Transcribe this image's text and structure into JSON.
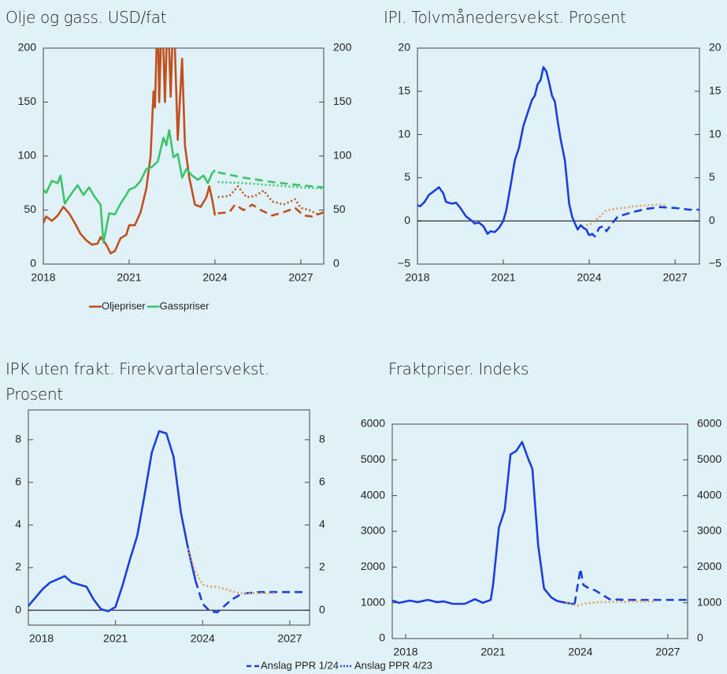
{
  "chart_data": [
    {
      "type": "line",
      "title": "Olje og gass. USD/fat",
      "xlim": [
        2018,
        2027.8
      ],
      "xticks": [
        2018,
        2021,
        2024,
        2027
      ],
      "ylim": [
        0,
        200
      ],
      "yticks": [
        0,
        50,
        100,
        150,
        200
      ],
      "y2lim": [
        0,
        200
      ],
      "y2ticks": [
        0,
        50,
        100,
        150,
        200
      ],
      "legend": "bottom",
      "series": [
        {
          "name": "Oljepriser",
          "color": "#c0501e",
          "style": "solid",
          "x": [
            2018.0,
            2018.1,
            2018.3,
            2018.5,
            2018.7,
            2018.9,
            2019.1,
            2019.3,
            2019.5,
            2019.7,
            2019.9,
            2020.0,
            2020.2,
            2020.35,
            2020.5,
            2020.7,
            2020.9,
            2021.0,
            2021.2,
            2021.4,
            2021.6,
            2021.75,
            2021.85,
            2021.9,
            2022.0,
            2022.05,
            2022.15,
            2022.25,
            2022.35,
            2022.45,
            2022.55,
            2022.7,
            2022.85,
            2022.95,
            2023.1,
            2023.3,
            2023.5,
            2023.7,
            2023.8,
            2023.9,
            2024.0
          ],
          "values": [
            38,
            44,
            40,
            45,
            53,
            47,
            38,
            28,
            22,
            18,
            19,
            25,
            18,
            10,
            12,
            24,
            27,
            36,
            36,
            48,
            70,
            100,
            160,
            145,
            240,
            150,
            240,
            150,
            240,
            155,
            240,
            115,
            190,
            110,
            80,
            55,
            53,
            62,
            72,
            60,
            45
          ]
        },
        {
          "name": "Gasspriser",
          "color": "#3dc46b",
          "style": "solid",
          "x": [
            2018.0,
            2018.1,
            2018.3,
            2018.5,
            2018.6,
            2018.75,
            2019.0,
            2019.2,
            2019.4,
            2019.6,
            2019.8,
            2020.0,
            2020.1,
            2020.3,
            2020.5,
            2020.7,
            2020.9,
            2021.0,
            2021.2,
            2021.4,
            2021.6,
            2021.8,
            2022.0,
            2022.2,
            2022.3,
            2022.4,
            2022.55,
            2022.7,
            2022.85,
            2023.0,
            2023.2,
            2023.4,
            2023.6,
            2023.75,
            2023.9,
            2024.0
          ],
          "values": [
            69,
            66,
            77,
            75,
            82,
            56,
            66,
            73,
            64,
            71,
            62,
            55,
            20,
            47,
            46,
            56,
            64,
            69,
            71,
            77,
            88,
            90,
            95,
            117,
            110,
            124,
            99,
            102,
            80,
            88,
            82,
            78,
            82,
            75,
            84,
            87
          ]
        },
        {
          "color": "#c0501e",
          "style": "dashed",
          "x": [
            2024.1,
            2024.5,
            2024.7,
            2025.0,
            2025.3,
            2025.6,
            2026.0,
            2026.4,
            2026.8,
            2027.1,
            2027.4,
            2027.8
          ],
          "values": [
            47,
            48,
            55,
            50,
            55,
            50,
            45,
            48,
            52,
            45,
            44,
            48
          ]
        },
        {
          "color": "#c0501e",
          "style": "dotted",
          "x": [
            2024.1,
            2024.5,
            2024.8,
            2025.1,
            2025.4,
            2025.7,
            2026.0,
            2026.4,
            2026.8,
            2027.0,
            2027.3,
            2027.6,
            2027.8
          ],
          "values": [
            62,
            63,
            72,
            62,
            63,
            68,
            58,
            55,
            60,
            52,
            50,
            46,
            48
          ]
        },
        {
          "color": "#3dc46b",
          "style": "dashed",
          "x": [
            2024.1,
            2025.0,
            2026.0,
            2027.0,
            2027.8
          ],
          "values": [
            85,
            80,
            76,
            73,
            71
          ]
        },
        {
          "color": "#3dc46b",
          "style": "dotted",
          "x": [
            2024.1,
            2025.0,
            2026.0,
            2027.0,
            2027.8
          ],
          "values": [
            76,
            75,
            73,
            71,
            70
          ]
        }
      ]
    },
    {
      "type": "line",
      "title": "IPI. Tolvmånedersvekst. Prosent",
      "xlim": [
        2018,
        2027.85
      ],
      "xticks": [
        2018,
        2021,
        2024,
        2027
      ],
      "ylim": [
        -5,
        20
      ],
      "yticks": [
        {
          "value": -5,
          "label": "−5"
        },
        0,
        5,
        10,
        15,
        20
      ],
      "y2lim": [
        -5,
        20
      ],
      "y2ticks": [
        {
          "value": -5,
          "label": "−5"
        },
        0,
        5,
        10,
        15,
        20
      ],
      "zero_line": true,
      "series": [
        {
          "color": "#1c3fdc",
          "style": "solid",
          "x": [
            2018.0,
            2018.1,
            2018.25,
            2018.4,
            2018.6,
            2018.75,
            2018.9,
            2019.0,
            2019.2,
            2019.35,
            2019.5,
            2019.7,
            2019.9,
            2020.0,
            2020.15,
            2020.3,
            2020.45,
            2020.55,
            2020.7,
            2020.85,
            2021.0,
            2021.1,
            2021.25,
            2021.4,
            2021.55,
            2021.7,
            2021.85,
            2022.0,
            2022.1,
            2022.2,
            2022.3,
            2022.4,
            2022.5,
            2022.6,
            2022.7,
            2022.8,
            2022.9,
            2023.0,
            2023.15,
            2023.3,
            2023.4,
            2023.5,
            2023.6,
            2023.7,
            2023.8,
            2023.9,
            2024.0
          ],
          "values": [
            1.8,
            1.7,
            2.2,
            3.0,
            3.5,
            3.9,
            3.2,
            2.2,
            2.0,
            2.1,
            1.5,
            0.5,
            0,
            -0.3,
            -0.2,
            -0.6,
            -1.5,
            -1.2,
            -1.3,
            -0.8,
            0,
            1.2,
            4,
            7,
            8.5,
            11,
            12.5,
            14,
            14.5,
            15.8,
            16.3,
            17.8,
            17.3,
            16,
            14.5,
            13.8,
            11.5,
            9.5,
            7,
            2,
            0.5,
            -0.3,
            -1,
            -0.5,
            -0.8,
            -1.0,
            -1.7
          ]
        },
        {
          "color": "#1c3fdc",
          "style": "dashed",
          "x": [
            2024.0,
            2024.1,
            2024.2,
            2024.35,
            2024.5,
            2024.6,
            2024.8,
            2025.0,
            2025.5,
            2026.0,
            2026.5,
            2027.0,
            2027.5,
            2027.85
          ],
          "values": [
            -1.7,
            -1.5,
            -1.8,
            -0.8,
            -0.6,
            -1.2,
            -0.3,
            0.5,
            1.0,
            1.4,
            1.6,
            1.5,
            1.3,
            1.3
          ]
        },
        {
          "color": "#e0a060",
          "style": "dotted",
          "x": [
            2023.9,
            2024.1,
            2024.3,
            2024.6,
            2024.9,
            2025.2,
            2025.6,
            2026.0,
            2026.4,
            2026.7
          ],
          "values": [
            -0.5,
            -0.3,
            0.3,
            1.2,
            1.4,
            1.5,
            1.7,
            1.8,
            1.9,
            1.8
          ]
        }
      ]
    },
    {
      "type": "line",
      "title": "IPK uten frakt. Firekvartalersvekst. Prosent",
      "xlim": [
        2018,
        2027.68
      ],
      "xticks": [
        2018,
        2021,
        2024,
        2027
      ],
      "ylim": [
        -0.7,
        9.4
      ],
      "yticks": [
        0,
        2,
        4,
        6,
        8
      ],
      "y2lim": [
        -0.7,
        9.4
      ],
      "y2ticks": [
        0,
        2,
        4,
        6,
        8
      ],
      "zero_line": true,
      "series": [
        {
          "color": "#1c3fdc",
          "style": "solid",
          "x": [
            2018.0,
            2018.25,
            2018.5,
            2018.75,
            2019.0,
            2019.25,
            2019.5,
            2019.75,
            2020.0,
            2020.25,
            2020.5,
            2020.75,
            2021.0,
            2021.25,
            2021.5,
            2021.75,
            2022.0,
            2022.25,
            2022.5,
            2022.75,
            2023.0,
            2023.25,
            2023.5,
            2023.75
          ],
          "values": [
            0.2,
            0.6,
            1.0,
            1.3,
            1.45,
            1.6,
            1.3,
            1.2,
            1.1,
            0.5,
            0.05,
            -0.05,
            0.15,
            1.2,
            2.4,
            3.5,
            5.4,
            7.4,
            8.4,
            8.3,
            7.2,
            4.6,
            2.9,
            1.4
          ]
        },
        {
          "color": "#1c3fdc",
          "style": "dashed",
          "x": [
            2023.75,
            2024.0,
            2024.25,
            2024.5,
            2024.75,
            2025.0,
            2025.25,
            2025.5,
            2026.0,
            2026.5,
            2027.0,
            2027.6
          ],
          "values": [
            1.4,
            0.3,
            -0.05,
            -0.1,
            0.2,
            0.5,
            0.7,
            0.8,
            0.85,
            0.85,
            0.85,
            0.85
          ]
        },
        {
          "color": "#e0a060",
          "style": "dotted",
          "x": [
            2023.5,
            2023.75,
            2024.0,
            2024.25,
            2024.5,
            2024.75,
            2025.0,
            2025.25,
            2025.5,
            2026.0,
            2026.5
          ],
          "values": [
            2.9,
            1.8,
            1.2,
            1.1,
            1.1,
            1.0,
            0.9,
            0.8,
            0.8,
            0.8,
            0.8
          ]
        }
      ]
    },
    {
      "type": "line",
      "title": "Fraktpriser. Indeks",
      "xlim": [
        2017.54,
        2027.68
      ],
      "xticks": [
        2018,
        2021,
        2024,
        2027
      ],
      "ylim": [
        0,
        6000
      ],
      "yticks": [
        0,
        1000,
        2000,
        3000,
        4000,
        5000,
        6000
      ],
      "y2lim": [
        0,
        6000
      ],
      "y2ticks": [
        0,
        1000,
        2000,
        3000,
        4000,
        5000,
        6000
      ],
      "series": [
        {
          "color": "#1c3fdc",
          "style": "solid",
          "x": [
            2017.54,
            2017.78,
            2018.14,
            2018.41,
            2018.76,
            2019.08,
            2019.3,
            2019.62,
            2020.03,
            2020.38,
            2020.65,
            2020.92,
            2021.0,
            2021.2,
            2021.4,
            2021.6,
            2021.8,
            2022.0,
            2022.2,
            2022.35,
            2022.55,
            2022.75,
            2023.0,
            2023.2,
            2023.5,
            2023.8
          ],
          "values": [
            1060,
            1000,
            1060,
            1020,
            1080,
            1020,
            1040,
            970,
            970,
            1100,
            1000,
            1080,
            1500,
            3100,
            3600,
            5150,
            5250,
            5500,
            5050,
            4750,
            2600,
            1400,
            1150,
            1050,
            1000,
            960
          ]
        },
        {
          "color": "#1c3fdc",
          "style": "dashed",
          "x": [
            2023.8,
            2024.0,
            2024.1,
            2024.3,
            2024.5,
            2024.7,
            2025.0,
            2025.5,
            2027.68
          ],
          "values": [
            960,
            1950,
            1500,
            1400,
            1350,
            1250,
            1100,
            1080,
            1080
          ]
        },
        {
          "color": "#e0a060",
          "style": "dotted",
          "x": [
            2023.5,
            2023.9,
            2024.2,
            2024.6,
            2025.5,
            2026.6
          ],
          "values": [
            1000,
            920,
            980,
            1020,
            1030,
            1040
          ]
        }
      ]
    }
  ],
  "legend": [
    {
      "label": "Anslag PPR 1/24",
      "style": "dashed",
      "color": "#1c3fdc"
    },
    {
      "label": "Anslag PPR 4/23",
      "style": "dotted",
      "color": "#1c3fdc"
    }
  ]
}
